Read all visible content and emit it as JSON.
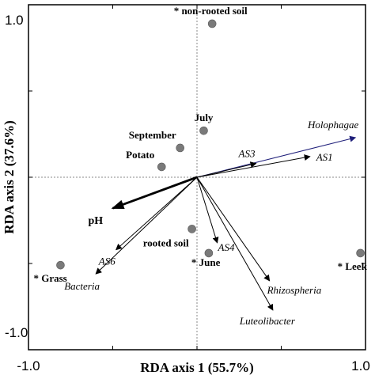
{
  "chart_data": {
    "type": "scatter",
    "subtype": "rda-biplot",
    "xlabel": "RDA axis 1 (55.7%)",
    "ylabel": "RDA axis 2 (37.6%)",
    "xlim": [
      -1.0,
      1.0
    ],
    "ylim": [
      -1.0,
      1.0
    ],
    "x_ticks": [
      "-1.0",
      "1.0"
    ],
    "y_ticks": [
      "1.0",
      "-1.0"
    ],
    "reference_lines": "dotted lines at x = 0 and y = 0",
    "point_color": "#7a7a7a",
    "arrow_color": "#000000",
    "highlight_arrow_color": "#1f1f7a",
    "samples": [
      {
        "label": "* non-rooted soil",
        "x": 0.09,
        "y": 0.89
      },
      {
        "label": "July",
        "x": 0.04,
        "y": 0.27
      },
      {
        "label": "September",
        "x": -0.1,
        "y": 0.17
      },
      {
        "label": "Potato",
        "x": -0.21,
        "y": 0.06
      },
      {
        "label": "rooted soil",
        "x": -0.03,
        "y": -0.3
      },
      {
        "label": "* June",
        "x": 0.07,
        "y": -0.44
      },
      {
        "label": "* Leek",
        "x": 0.97,
        "y": -0.44
      },
      {
        "label": "* Grass",
        "x": -0.81,
        "y": -0.51
      }
    ],
    "species_arrows": [
      {
        "label": "Holophagae",
        "x": 0.94,
        "y": 0.23,
        "color": "#1f1f7a"
      },
      {
        "label": "AS1",
        "x": 0.67,
        "y": 0.12
      },
      {
        "label": "AS3",
        "x": 0.35,
        "y": 0.08
      },
      {
        "label": "AS4",
        "x": 0.12,
        "y": -0.38
      },
      {
        "label": "Rhizospheria",
        "x": 0.43,
        "y": -0.6
      },
      {
        "label": "Luteolibacter",
        "x": 0.45,
        "y": -0.77
      },
      {
        "label": "AS6",
        "x": -0.48,
        "y": -0.42
      },
      {
        "label": "Bacteria",
        "x": -0.6,
        "y": -0.56
      }
    ],
    "environmental_arrows": [
      {
        "label": "pH",
        "x": -0.5,
        "y": -0.18
      }
    ]
  }
}
